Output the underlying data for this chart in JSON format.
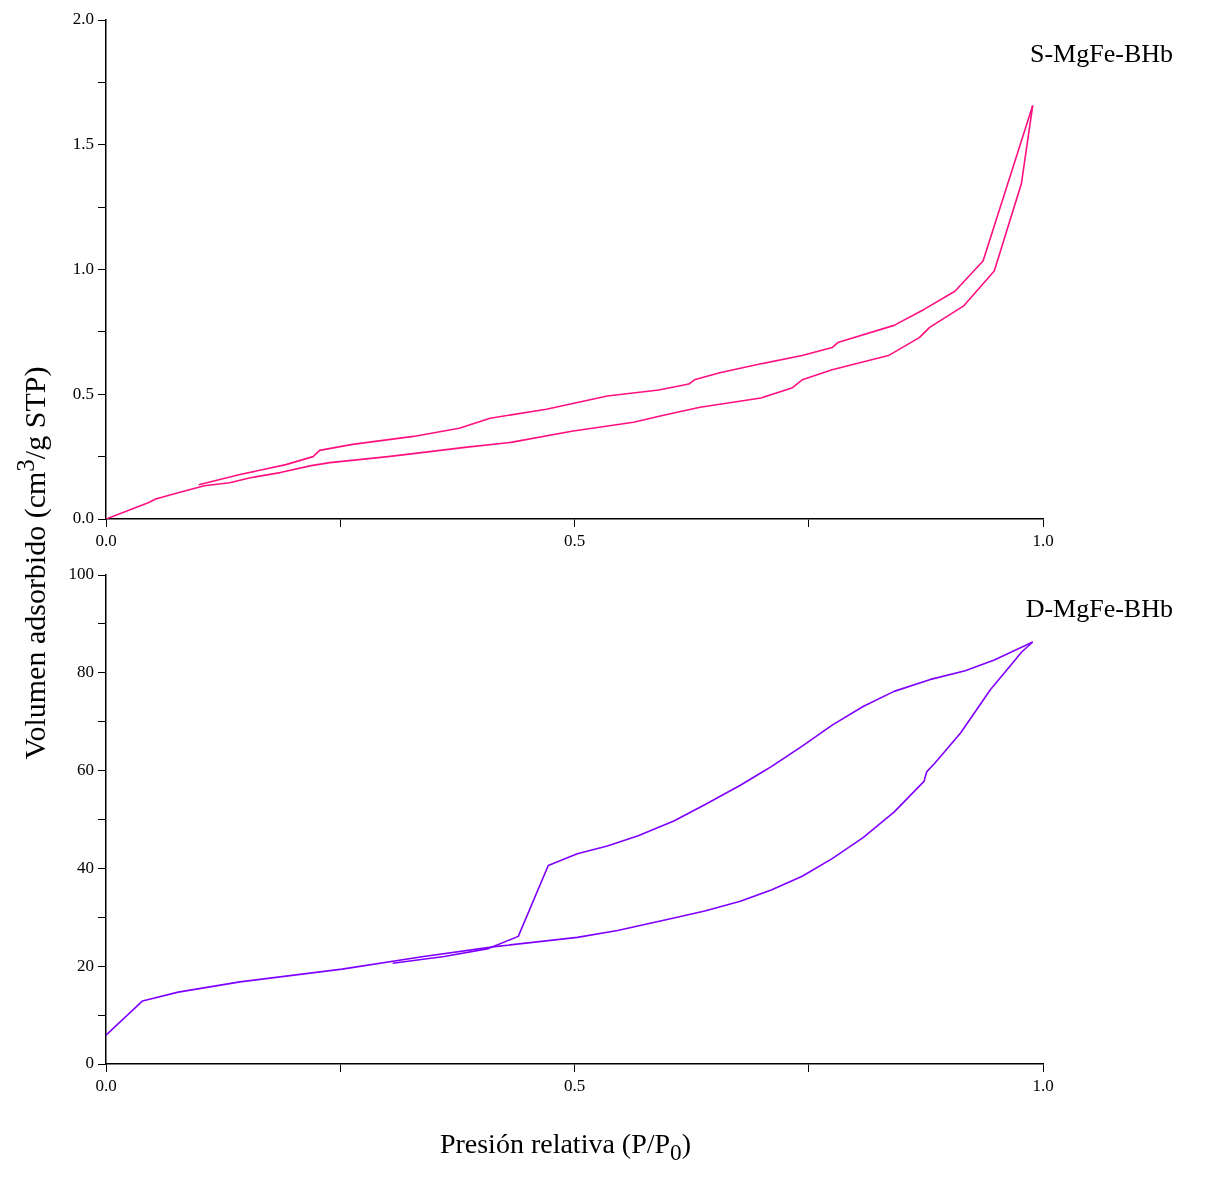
{
  "chart_data": [
    {
      "type": "line",
      "ylabel": "Volumen adsorbido (cm$^{3}$/g STP)",
      "annotations": [
        "S-MgFe-BHb"
      ],
      "xlim": [
        0,
        1
      ],
      "xticks": [
        {
          "value": 0,
          "label": "0.0"
        },
        {
          "value": 0.25,
          "label": null
        },
        {
          "value": 0.5,
          "label": "0.5"
        },
        {
          "value": 0.75,
          "label": null
        },
        {
          "value": 1,
          "label": "1.0"
        }
      ],
      "ylim": [
        0,
        2
      ],
      "yticks": [
        {
          "value": 0,
          "label": "0.0"
        },
        {
          "value": 0.25,
          "label": null
        },
        {
          "value": 0.5,
          "label": "0.5"
        },
        {
          "value": 0.75,
          "label": null
        },
        {
          "value": 1,
          "label": "1.0"
        },
        {
          "value": 1.25,
          "label": null
        },
        {
          "value": 1.5,
          "label": "1.5"
        },
        {
          "value": 1.75,
          "label": null
        },
        {
          "value": 2,
          "label": "2.0"
        }
      ],
      "grid": false,
      "legend": false,
      "marker": "none",
      "line_style": "solid",
      "series": [
        {
          "color": "#ff1080",
          "x": [
            0,
            0.045,
            0.053,
            0.077,
            0.105,
            0.132,
            0.154,
            0.186,
            0.219,
            0.239,
            0.301,
            0.339,
            0.383,
            0.432,
            0.497,
            0.563,
            0.595,
            0.634,
            0.699,
            0.732,
            0.743,
            0.775,
            0.835,
            0.868,
            0.879,
            0.915,
            0.948,
            0.977,
            0.989
          ],
          "values": [
            0,
            0.065,
            0.08,
            0.105,
            0.133,
            0.145,
            0.165,
            0.186,
            0.214,
            0.226,
            0.25,
            0.267,
            0.287,
            0.307,
            0.352,
            0.388,
            0.416,
            0.448,
            0.485,
            0.525,
            0.558,
            0.598,
            0.655,
            0.727,
            0.768,
            0.853,
            0.994,
            1.345,
            1.657
          ]
        },
        {
          "color": "#ff1080",
          "x": [
            0.099,
            0.143,
            0.192,
            0.221,
            0.228,
            0.263,
            0.328,
            0.377,
            0.41,
            0.47,
            0.535,
            0.59,
            0.622,
            0.628,
            0.655,
            0.699,
            0.743,
            0.775,
            0.781,
            0.841,
            0.873,
            0.906,
            0.936,
            0.989
          ],
          "values": [
            0.137,
            0.178,
            0.218,
            0.25,
            0.275,
            0.299,
            0.331,
            0.364,
            0.404,
            0.44,
            0.493,
            0.517,
            0.541,
            0.558,
            0.586,
            0.622,
            0.655,
            0.687,
            0.707,
            0.776,
            0.84,
            0.913,
            1.034,
            1.657
          ]
        }
      ]
    },
    {
      "type": "line",
      "xlabel": "Presión relativa (P/P$_{0}$)",
      "annotations": [
        "D-MgFe-BHb"
      ],
      "xlim": [
        0,
        1
      ],
      "xticks": [
        {
          "value": 0,
          "label": "0.0"
        },
        {
          "value": 0.25,
          "label": null
        },
        {
          "value": 0.5,
          "label": "0.5"
        },
        {
          "value": 0.75,
          "label": null
        },
        {
          "value": 1,
          "label": "1.0"
        }
      ],
      "ylim": [
        0,
        100
      ],
      "yticks": [
        0,
        {
          "value": 10,
          "label": null
        },
        20,
        {
          "value": 30,
          "label": null
        },
        40,
        {
          "value": 50,
          "label": null
        },
        60,
        {
          "value": 70,
          "label": null
        },
        80,
        {
          "value": 90,
          "label": null
        },
        100
      ],
      "grid": false,
      "legend": false,
      "marker": "none",
      "line_style": "solid",
      "series": [
        {
          "color": "#8000ff",
          "x": [
            0,
            0.039,
            0.077,
            0.143,
            0.252,
            0.339,
            0.415,
            0.503,
            0.546,
            0.612,
            0.639,
            0.677,
            0.71,
            0.743,
            0.775,
            0.808,
            0.841,
            0.873,
            0.876,
            0.884,
            0.912,
            0.944,
            0.977,
            0.989
          ],
          "values": [
            5.9,
            12.9,
            14.7,
            16.8,
            19.4,
            22.0,
            24.0,
            25.9,
            27.3,
            30.1,
            31.3,
            33.3,
            35.6,
            38.4,
            42.0,
            46.3,
            51.5,
            57.8,
            59.8,
            61.4,
            67.7,
            76.6,
            84.2,
            86.3
          ]
        },
        {
          "color": "#8000ff",
          "x": [
            0.306,
            0.361,
            0.408,
            0.44,
            0.472,
            0.503,
            0.535,
            0.568,
            0.606,
            0.639,
            0.677,
            0.71,
            0.743,
            0.775,
            0.808,
            0.841,
            0.879,
            0.917,
            0.948,
            0.989
          ],
          "values": [
            20.6,
            22.0,
            23.6,
            26.1,
            40.6,
            43.0,
            44.6,
            46.7,
            49.7,
            53.0,
            57.0,
            60.8,
            65.0,
            69.3,
            73.1,
            76.2,
            78.6,
            80.4,
            82.6,
            86.3
          ]
        }
      ]
    }
  ]
}
